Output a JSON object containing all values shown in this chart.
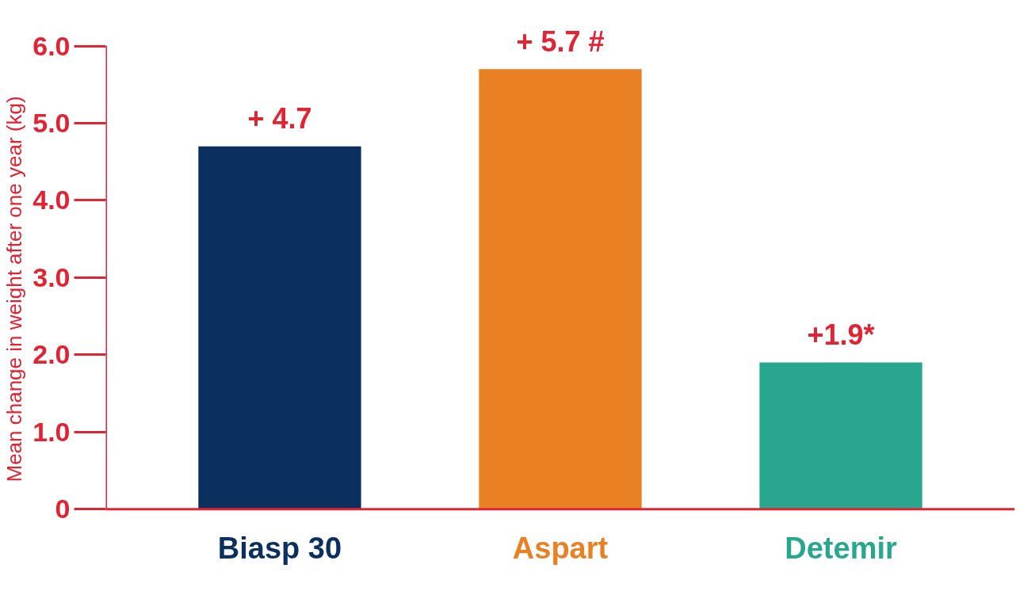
{
  "chart_data": {
    "type": "bar",
    "ylabel": "Mean change in weight after one year (kg)",
    "categories": [
      "Biasp 30",
      "Aspart",
      "Detemir"
    ],
    "values": [
      4.7,
      5.7,
      1.9
    ],
    "colors": [
      "#0b2f5e",
      "#e98024",
      "#29a78e"
    ],
    "value_labels": [
      "+ 4.7",
      "+ 5.7 #",
      "+1.9*"
    ],
    "ylim": [
      0,
      6.0
    ],
    "yticks": [
      0,
      {
        "value": 1,
        "label": "1.0"
      },
      {
        "value": 2,
        "label": "2.0"
      },
      {
        "value": 3,
        "label": "3.0"
      },
      {
        "value": 4,
        "label": "4.0"
      },
      {
        "value": 5,
        "label": "5.0"
      },
      {
        "value": 6,
        "label": "6.0"
      }
    ],
    "grid": false
  }
}
